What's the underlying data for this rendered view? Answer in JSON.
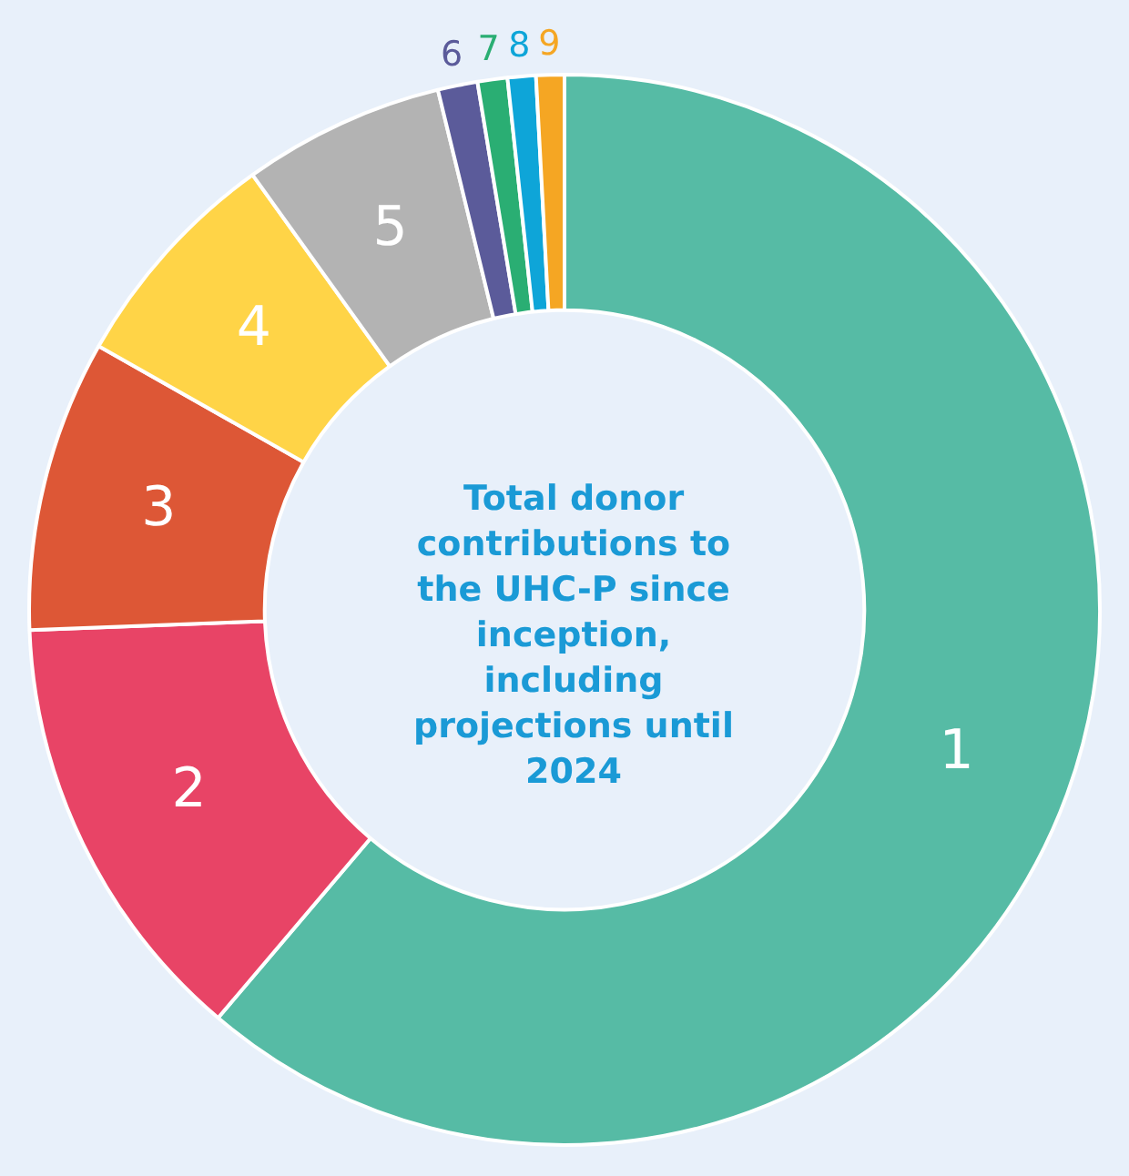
{
  "chart_data": {
    "type": "donut",
    "title": "Total donor contributions to the UHC-P since inception, including projections until 2024",
    "categories": [
      "1",
      "2",
      "3",
      "4",
      "5",
      "6",
      "7",
      "8",
      "9"
    ],
    "values": [
      61.2,
      13.2,
      8.8,
      6.9,
      6.1,
      1.2,
      0.9,
      0.85,
      0.85
    ],
    "colors": [
      "#56bba5",
      "#e84466",
      "#dd5736",
      "#ffd447",
      "#b3b3b3",
      "#5b5b9a",
      "#2aae73",
      "#0ea5d8",
      "#f5a623"
    ],
    "legend": false
  }
}
